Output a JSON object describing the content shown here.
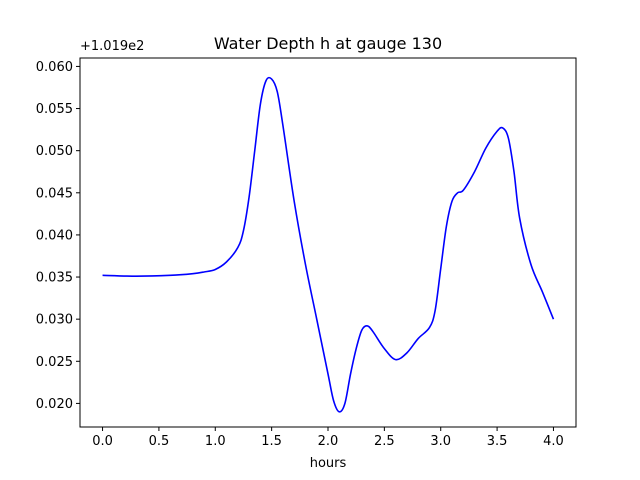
{
  "chart_data": {
    "type": "line",
    "title": "Water Depth h at gauge 130",
    "xlabel": "hours",
    "ylabel": "",
    "offset_label": "+1.019e2",
    "xlim": [
      -0.2,
      4.2
    ],
    "ylim": [
      0.0172,
      0.061
    ],
    "x_ticks": [
      0.0,
      0.5,
      1.0,
      1.5,
      2.0,
      2.5,
      3.0,
      3.5,
      4.0
    ],
    "x_tick_labels": [
      "0.0",
      "0.5",
      "1.0",
      "1.5",
      "2.0",
      "2.5",
      "3.0",
      "3.5",
      "4.0"
    ],
    "y_ticks": [
      0.02,
      0.025,
      0.03,
      0.035,
      0.04,
      0.045,
      0.05,
      0.055,
      0.06
    ],
    "y_tick_labels": [
      "0.020",
      "0.025",
      "0.030",
      "0.035",
      "0.040",
      "0.045",
      "0.050",
      "0.055",
      "0.060"
    ],
    "grid": false,
    "series": [
      {
        "color": "#0000ff",
        "x": [
          0.0,
          0.3,
          0.6,
          0.8,
          0.9,
          1.0,
          1.1,
          1.2,
          1.25,
          1.3,
          1.35,
          1.4,
          1.45,
          1.5,
          1.55,
          1.6,
          1.7,
          1.8,
          1.9,
          2.0,
          2.05,
          2.1,
          2.15,
          2.2,
          2.25,
          2.3,
          2.35,
          2.4,
          2.5,
          2.6,
          2.7,
          2.8,
          2.9,
          2.95,
          3.0,
          3.05,
          3.1,
          3.15,
          3.2,
          3.3,
          3.4,
          3.5,
          3.55,
          3.6,
          3.65,
          3.7,
          3.8,
          3.9,
          4.0
        ],
        "y": [
          0.0352,
          0.0351,
          0.0352,
          0.0354,
          0.0356,
          0.0359,
          0.0368,
          0.0385,
          0.0405,
          0.0445,
          0.05,
          0.0555,
          0.0583,
          0.0585,
          0.057,
          0.053,
          0.044,
          0.0365,
          0.03,
          0.0235,
          0.0203,
          0.019,
          0.02,
          0.0235,
          0.0265,
          0.0287,
          0.0292,
          0.0285,
          0.0265,
          0.0252,
          0.026,
          0.0277,
          0.029,
          0.031,
          0.036,
          0.041,
          0.044,
          0.045,
          0.0453,
          0.0475,
          0.0503,
          0.0523,
          0.0527,
          0.0515,
          0.0475,
          0.042,
          0.0365,
          0.0333,
          0.03
        ]
      }
    ]
  }
}
